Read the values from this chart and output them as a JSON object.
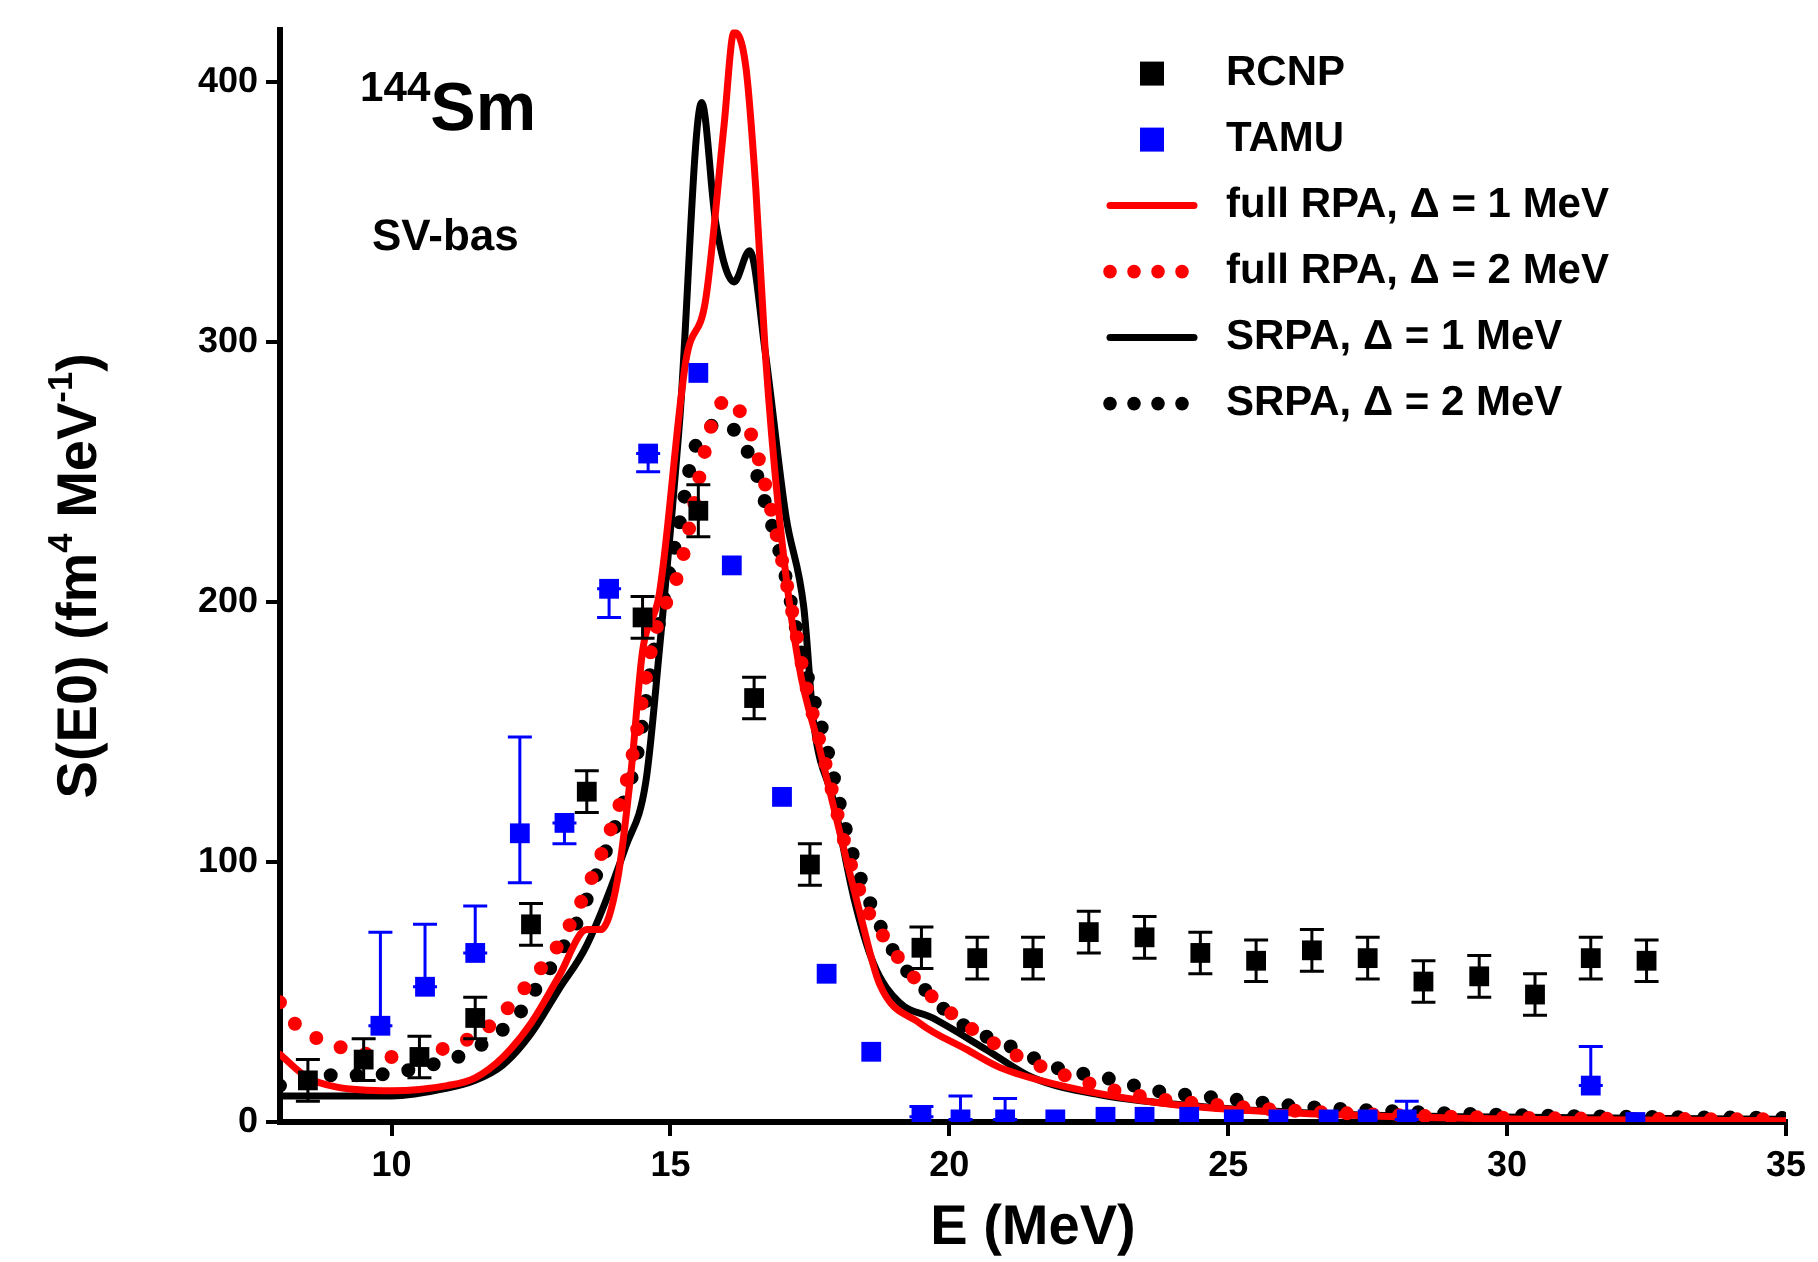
{
  "chart_data": {
    "type": "line",
    "xlabel": "E (MeV)",
    "ylabel": "S(E0) (fm$^{4}$ MeV$^{-1}$)",
    "annotations": [
      "$^{144}$Sm",
      "SV-bas"
    ],
    "xlim": [
      8,
      35
    ],
    "ylim": [
      0,
      420
    ],
    "xticks": [
      10,
      15,
      20,
      25,
      30,
      35
    ],
    "yticks": [
      0,
      100,
      200,
      300,
      400
    ],
    "grid": false,
    "legend": "top right",
    "series": [
      {
        "name": "RCNP",
        "type": "scatter",
        "marker": "square",
        "color": "#000000",
        "x": [
          8.5,
          9.5,
          10.5,
          11.5,
          12.5,
          13.5,
          14.5,
          15.5,
          16.5,
          17.5,
          19.5,
          20.5,
          21.5,
          22.5,
          23.5,
          24.5,
          25.5,
          26.5,
          27.5,
          28.5,
          29.5,
          30.5,
          31.5,
          32.5
        ],
        "values": [
          16,
          24,
          25,
          40,
          76,
          127,
          194,
          235,
          163,
          99,
          67,
          63,
          63,
          73,
          71,
          65,
          62,
          66,
          63,
          54,
          56,
          49,
          63,
          62
        ],
        "errors": [
          8,
          8,
          8,
          8,
          8,
          8,
          8,
          10,
          8,
          8,
          8,
          8,
          8,
          8,
          8,
          8,
          8,
          8,
          8,
          8,
          8,
          8,
          8,
          8
        ]
      },
      {
        "name": "TAMU",
        "type": "scatter",
        "marker": "square",
        "color": "#0000ff",
        "x": [
          9.8,
          10.6,
          11.5,
          12.3,
          13.1,
          13.9,
          14.6,
          15.5,
          16.1,
          17.0,
          17.8,
          18.6,
          19.5,
          20.2,
          21.0,
          21.9,
          22.8,
          23.5,
          24.3,
          25.1,
          25.9,
          26.8,
          27.5,
          28.2,
          31.5,
          32.3
        ],
        "values": [
          37,
          52,
          65,
          111,
          115,
          205,
          257,
          288,
          214,
          125,
          57,
          27,
          2,
          1,
          1,
          1,
          2,
          2,
          2,
          1,
          1,
          1,
          1,
          1,
          14,
          0
        ],
        "errors": [
          [
            37,
            73
          ],
          [
            52,
            76
          ],
          [
            65,
            83
          ],
          [
            92,
            148
          ],
          [
            107,
            115
          ],
          [
            194,
            205
          ],
          [
            250,
            257
          ],
          null,
          null,
          null,
          null,
          null,
          [
            2,
            6
          ],
          [
            1,
            10
          ],
          [
            1,
            9
          ],
          null,
          null,
          null,
          null,
          null,
          null,
          null,
          null,
          [
            1,
            8
          ],
          [
            14,
            29
          ],
          null
        ]
      },
      {
        "name": "full RPA, Δ = 1 MeV",
        "color": "#ff0000",
        "line_style": "solid",
        "x": [
          8,
          8.5,
          9,
          10,
          11,
          11.5,
          12,
          12.5,
          13,
          13.5,
          13.75,
          14.05,
          14.3,
          14.5,
          14.8,
          15.28,
          15.63,
          15.96,
          16.14,
          16.35,
          16.53,
          16.7,
          16.96,
          17.3,
          17.68,
          18.04,
          18.39,
          18.75,
          19.47,
          20.3,
          20.9,
          22.1,
          23.9,
          25.7,
          28.1,
          30.5,
          35
        ],
        "values": [
          26,
          17,
          13.5,
          12,
          14,
          17,
          25,
          38,
          56,
          74,
          74,
          93,
          136,
          181,
          203,
          293,
          316,
          383,
          419,
          406,
          359,
          296,
          231,
          176,
          143,
          111,
          81,
          53,
          38,
          28,
          21,
          13.5,
          7,
          4,
          2,
          1,
          0.5
        ]
      },
      {
        "name": "full RPA, Δ = 2 MeV",
        "color": "#ff0000",
        "line_style": "dotted",
        "x": [
          8,
          8.3,
          8.8,
          9.6,
          10,
          10.9,
          11.76,
          12.48,
          13.1,
          13.85,
          14.27,
          14.7,
          15.17,
          15.78,
          16.06,
          16.3,
          16.5,
          16.85,
          17.14,
          17.43,
          17.8,
          18.14,
          18.5,
          18.8,
          19.47,
          20.08,
          20.9,
          21.87,
          23.3,
          25.1,
          27.5,
          30.5,
          35
        ],
        "values": [
          46,
          37,
          31,
          26,
          25,
          28,
          37,
          54,
          72,
          108,
          136,
          186,
          213,
          271,
          278,
          271,
          261,
          231,
          201,
          168,
          136,
          106,
          83,
          72,
          53,
          41,
          29,
          19.5,
          10.5,
          6,
          3,
          1.5,
          1
        ]
      },
      {
        "name": "SRPA, Δ = 1 MeV",
        "color": "#000000",
        "line_style": "solid",
        "x": [
          8,
          9,
          10,
          11,
          11.5,
          12,
          12.5,
          13,
          13.5,
          14.2,
          14.56,
          14.8,
          15.17,
          15.56,
          15.81,
          16.14,
          16.42,
          16.7,
          17.07,
          17.39,
          17.57,
          17.93,
          18.29,
          18.64,
          19.1,
          19.7,
          20.65,
          21.5,
          22.7,
          24.5,
          27,
          29.3,
          35
        ],
        "values": [
          10,
          10,
          10,
          13,
          16,
          22,
          34,
          51,
          68,
          106,
          131,
          181,
          271,
          392,
          346,
          323,
          335,
          296,
          233,
          198,
          153,
          123,
          86,
          61,
          46,
          40,
          28,
          17,
          10.5,
          6,
          3,
          2,
          1
        ]
      },
      {
        "name": "SRPA, Δ = 2 MeV",
        "color": "#000000",
        "line_style": "dotted",
        "x": [
          8,
          8.5,
          8.8,
          9.5,
          10.1,
          10.5,
          10.9,
          11.4,
          11.83,
          12.23,
          12.55,
          12.84,
          13.1,
          13.33,
          13.67,
          14.03,
          14.4,
          14.7,
          15.17,
          15.42,
          15.7,
          15.96,
          16.24,
          16.5,
          16.7,
          17.03,
          17.32,
          17.78,
          18.2,
          18.5,
          19.1,
          19.47,
          20.2,
          21.1,
          21.9,
          22.8,
          23.7,
          24.95,
          26.3,
          28.1,
          30.5,
          35
        ],
        "values": [
          14,
          17,
          18,
          18,
          19,
          21,
          23,
          27,
          33,
          40,
          50,
          59,
          68,
          77,
          95,
          115,
          141,
          181,
          231,
          258,
          267,
          269,
          263,
          252,
          238,
          213,
          183,
          146,
          108,
          88.5,
          62,
          53,
          38,
          29,
          21,
          17,
          12,
          9,
          6,
          4,
          2.5,
          1.5
        ]
      }
    ]
  }
}
